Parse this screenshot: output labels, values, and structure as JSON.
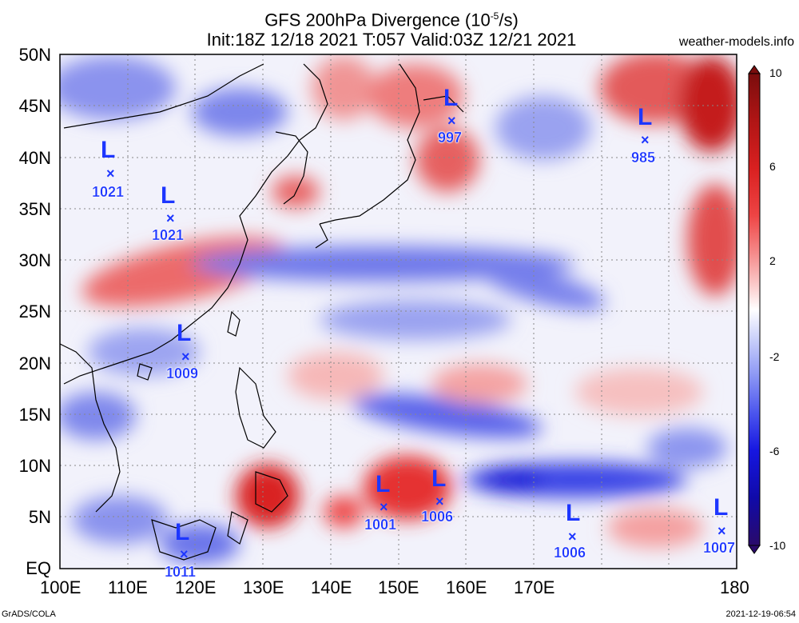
{
  "title_line1": "GFS 200hPa Divergence (10",
  "title_exp": "-5",
  "title_unit": "/s)",
  "title_line2": "Init:18Z 12/18 2021 T:057 Valid:03Z 12/21 2021",
  "site": "weather-models.info",
  "footer_left": "GrADS/COLA",
  "footer_right": "2021-12-19-06:54",
  "lat_labels": [
    "50N",
    "45N",
    "40N",
    "35N",
    "30N",
    "25N",
    "20N",
    "15N",
    "10N",
    "5N",
    "EQ"
  ],
  "lon_labels": [
    "100E",
    "110E",
    "120E",
    "130E",
    "140E",
    "150E",
    "160E",
    "170E",
    "180"
  ],
  "colorbar": {
    "labels": [
      "10",
      "6",
      "2",
      "-2",
      "-6",
      "-10"
    ],
    "colors": [
      "#7a0d0d",
      "#b01515",
      "#d92020",
      "#ee4444",
      "#f58a8a",
      "#fbcccc",
      "#ffffff",
      "#ccd2fb",
      "#8c97f4",
      "#4b55ee",
      "#1616e0",
      "#100aa8",
      "#2a0a6a"
    ]
  },
  "lows": [
    {
      "label": "L",
      "marker": "×",
      "pressure": "1021"
    },
    {
      "label": "L",
      "marker": "×",
      "pressure": "1021"
    },
    {
      "label": "L",
      "marker": "×",
      "pressure": "997"
    },
    {
      "label": "L",
      "marker": "×",
      "pressure": "985"
    },
    {
      "label": "L",
      "marker": "×",
      "pressure": "1009"
    },
    {
      "label": "L",
      "marker": "×",
      "pressure": "1001"
    },
    {
      "label": "L",
      "marker": "×",
      "pressure": "1006"
    },
    {
      "label": "L",
      "marker": "×",
      "pressure": "1006"
    },
    {
      "label": "L",
      "marker": "×",
      "pressure": "1007"
    },
    {
      "label": "L",
      "marker": "×",
      "pressure": "1011"
    }
  ]
}
